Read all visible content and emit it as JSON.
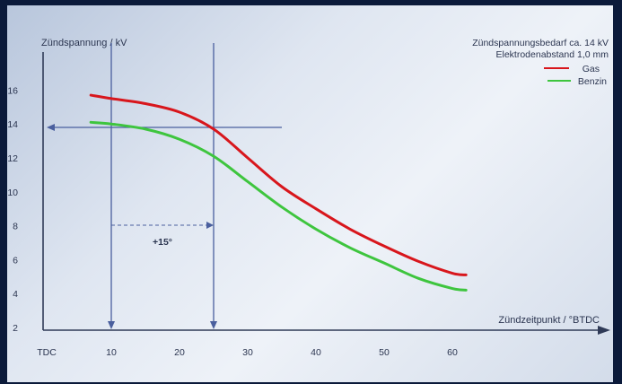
{
  "chart_data": {
    "type": "line",
    "ylabel": "Zündspannung / kV",
    "xlabel": "Zündzeitpunkt / °BTDC",
    "annotation_top": [
      "Zündspannungsbedarf ca. 14 kV",
      "Elektrodenabstand 1,0 mm"
    ],
    "delta_label": "+15°",
    "x_ticks": [
      "TDC",
      "10",
      "20",
      "30",
      "40",
      "50",
      "60"
    ],
    "y_ticks": [
      "2",
      "4",
      "6",
      "8",
      "10",
      "12",
      "14",
      "16"
    ],
    "xlim": [
      0,
      65
    ],
    "ylim": [
      2,
      17
    ],
    "reference_lines": {
      "v1_x": 10,
      "v2_x": 25,
      "h_y": 13.8,
      "h_x_end": 35
    },
    "series": [
      {
        "name": "Gas",
        "color": "#d8161c",
        "x": [
          7,
          10,
          15,
          20,
          25,
          30,
          35,
          40,
          45,
          50,
          55,
          60,
          62
        ],
        "y": [
          15.7,
          15.5,
          15.2,
          14.7,
          13.7,
          12.0,
          10.3,
          9.0,
          7.8,
          6.8,
          5.9,
          5.2,
          5.1
        ]
      },
      {
        "name": "Benzin",
        "color": "#3ec53e",
        "x": [
          7,
          10,
          15,
          20,
          25,
          30,
          35,
          40,
          45,
          50,
          55,
          60,
          62
        ],
        "y": [
          14.1,
          14.0,
          13.7,
          13.1,
          12.1,
          10.6,
          9.1,
          7.8,
          6.7,
          5.8,
          4.9,
          4.3,
          4.2
        ]
      }
    ]
  }
}
